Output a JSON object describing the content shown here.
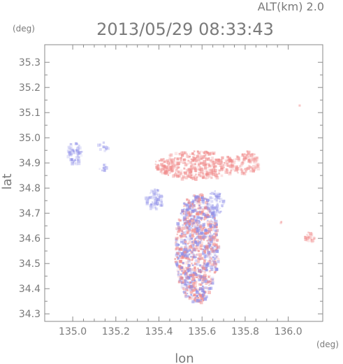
{
  "chart_data": {
    "type": "heatmap",
    "title": "2013/05/29 08:33:43",
    "subtitle": "ALT(km) 2.0",
    "xlabel": "lon",
    "ylabel": "lat",
    "xunit": "(deg)",
    "yunit": "(deg)",
    "xlim": [
      134.87,
      136.16
    ],
    "ylim": [
      34.27,
      35.37
    ],
    "xticks": [
      "135.0",
      "135.2",
      "135.4",
      "135.6",
      "135.8",
      "136.0"
    ],
    "yticks": [
      "34.3",
      "34.4",
      "34.5",
      "34.6",
      "34.7",
      "34.8",
      "34.9",
      "35.0",
      "35.1",
      "35.2",
      "35.3"
    ],
    "colors": {
      "positive": "#f08a8a",
      "negative": "#8f8fe8",
      "axis": "#8a8a8a"
    },
    "regions": [
      {
        "name": "northwest-patch-a",
        "polarity": "negative",
        "lon": [
          134.97,
          135.04
        ],
        "lat": [
          34.9,
          34.99
        ],
        "intensity": 0.35
      },
      {
        "name": "northwest-patch-b",
        "polarity": "negative",
        "lon": [
          135.11,
          135.16
        ],
        "lat": [
          34.95,
          34.99
        ],
        "intensity": 0.25
      },
      {
        "name": "small-negative-cell",
        "polarity": "negative",
        "lon": [
          135.12,
          135.15
        ],
        "lat": [
          34.87,
          34.9
        ],
        "intensity": 0.5
      },
      {
        "name": "north-arc",
        "polarity": "positive",
        "lon": [
          135.38,
          135.75
        ],
        "lat": [
          34.84,
          34.95
        ],
        "intensity": 0.55
      },
      {
        "name": "northeast-band",
        "polarity": "positive",
        "lon": [
          135.72,
          135.86
        ],
        "lat": [
          34.86,
          34.95
        ],
        "intensity": 0.4
      },
      {
        "name": "west-arc",
        "polarity": "negative",
        "lon": [
          135.33,
          135.42
        ],
        "lat": [
          34.72,
          34.8
        ],
        "intensity": 0.4
      },
      {
        "name": "central-column",
        "polarity": "mixed",
        "lon": [
          135.47,
          135.67
        ],
        "lat": [
          34.35,
          34.78
        ],
        "intensity": 0.7
      },
      {
        "name": "east-arc",
        "polarity": "negative",
        "lon": [
          135.62,
          135.7
        ],
        "lat": [
          34.7,
          34.8
        ],
        "intensity": 0.35
      },
      {
        "name": "far-east-cell",
        "polarity": "positive",
        "lon": [
          136.07,
          136.12
        ],
        "lat": [
          34.59,
          34.63
        ],
        "intensity": 0.45
      },
      {
        "name": "isolated-cell",
        "polarity": "positive",
        "lon": [
          135.96,
          135.97
        ],
        "lat": [
          34.66,
          34.67
        ],
        "intensity": 0.9
      },
      {
        "name": "northeast-speck",
        "polarity": "positive",
        "lon": [
          136.04,
          136.05
        ],
        "lat": [
          35.13,
          35.14
        ],
        "intensity": 0.6
      }
    ]
  }
}
